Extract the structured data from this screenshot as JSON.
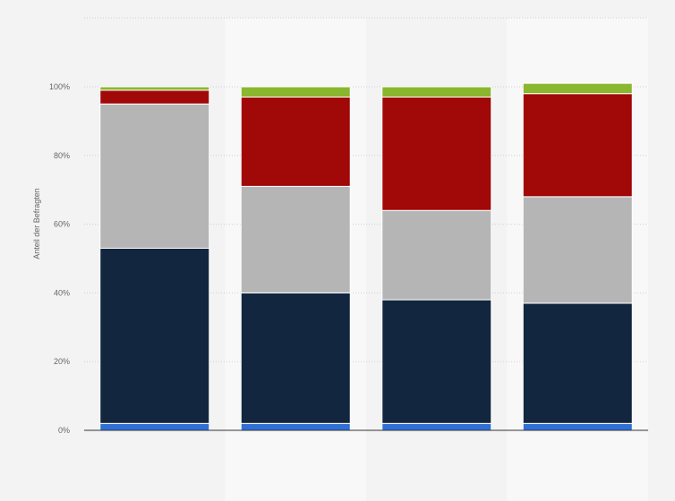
{
  "chart_data": {
    "type": "bar",
    "stacked": true,
    "ylabel": "Anteil der Befragten",
    "ylim": [
      0,
      100
    ],
    "yticks": [
      {
        "value": 0,
        "label": "0%"
      },
      {
        "value": 20,
        "label": "20%"
      },
      {
        "value": 40,
        "label": "40%"
      },
      {
        "value": 60,
        "label": "60%"
      },
      {
        "value": 80,
        "label": "80%"
      },
      {
        "value": 100,
        "label": "100%"
      }
    ],
    "grid": true,
    "legend": "none",
    "categories": [
      "",
      "",
      "",
      ""
    ],
    "series": [
      {
        "color": "#2f6fd6",
        "values": [
          2,
          2,
          2,
          2
        ]
      },
      {
        "color": "#12263f",
        "values": [
          51,
          38,
          36,
          35
        ]
      },
      {
        "color": "#b5b5b5",
        "values": [
          42,
          31,
          26,
          31
        ]
      },
      {
        "color": "#a10808",
        "values": [
          4,
          26,
          33,
          30
        ]
      },
      {
        "color": "#8ab72e",
        "values": [
          1,
          3,
          3,
          3
        ]
      }
    ]
  }
}
